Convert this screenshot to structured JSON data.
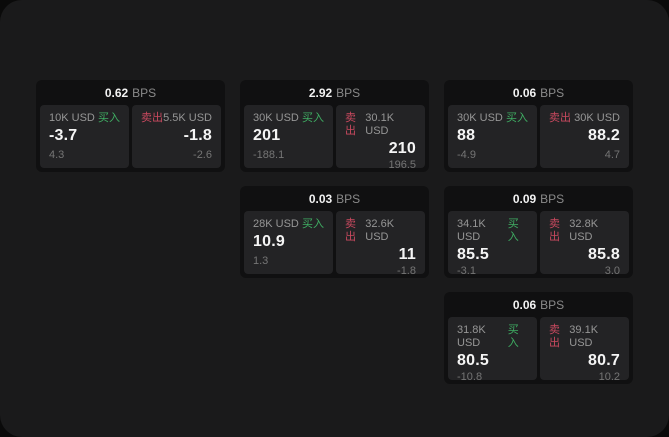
{
  "labels": {
    "bps": "BPS",
    "buy": "买入",
    "sell": "卖出"
  },
  "colors": {
    "buy": "#3fae63",
    "sell": "#c9495f",
    "screen_bg": "#1a1a1b",
    "card_bg": "#101011",
    "panel_bg": "#232325",
    "value_text": "#f5f5f5",
    "muted_text": "#969696",
    "sub_text": "#757575"
  },
  "cards": [
    {
      "col": 0,
      "row": 0,
      "bps": "0.62",
      "buy": {
        "amount": "10K USD",
        "value": "-3.7",
        "sub": "4.3"
      },
      "sell": {
        "amount": "5.5K USD",
        "value": "-1.8",
        "sub": "-2.6"
      }
    },
    {
      "col": 1,
      "row": 0,
      "bps": "2.92",
      "buy": {
        "amount": "30K USD",
        "value": "201",
        "sub": "-188.1"
      },
      "sell": {
        "amount": "30.1K USD",
        "value": "210",
        "sub": "196.5"
      }
    },
    {
      "col": 2,
      "row": 0,
      "bps": "0.06",
      "buy": {
        "amount": "30K USD",
        "value": "88",
        "sub": "-4.9"
      },
      "sell": {
        "amount": "30K USD",
        "value": "88.2",
        "sub": "4.7"
      }
    },
    {
      "col": 1,
      "row": 1,
      "bps": "0.03",
      "buy": {
        "amount": "28K USD",
        "value": "10.9",
        "sub": "1.3"
      },
      "sell": {
        "amount": "32.6K USD",
        "value": "11",
        "sub": "-1.8"
      }
    },
    {
      "col": 2,
      "row": 1,
      "bps": "0.09",
      "buy": {
        "amount": "34.1K USD",
        "value": "85.5",
        "sub": "-3.1"
      },
      "sell": {
        "amount": "32.8K USD",
        "value": "85.8",
        "sub": "3.0"
      }
    },
    {
      "col": 2,
      "row": 2,
      "bps": "0.06",
      "buy": {
        "amount": "31.8K USD",
        "value": "80.5",
        "sub": "-10.8"
      },
      "sell": {
        "amount": "39.1K USD",
        "value": "80.7",
        "sub": "10.2"
      }
    }
  ]
}
